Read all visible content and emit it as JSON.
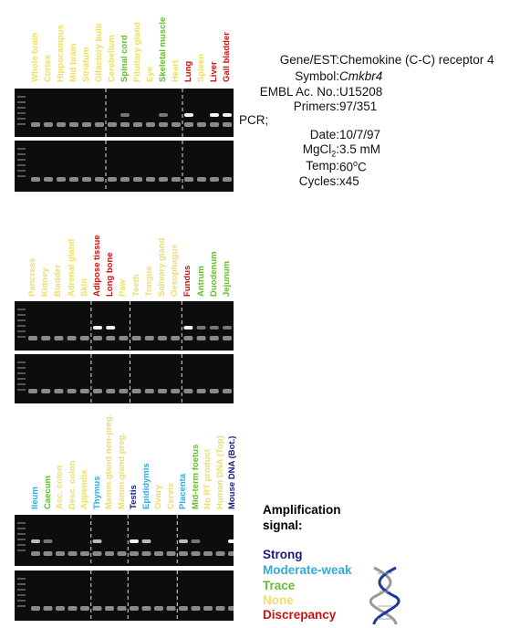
{
  "colors": {
    "strong": "#1a1a80",
    "moderate": "#33aadd",
    "trace": "#66bb33",
    "none": "#eedd66",
    "discrepancy": "#cc1111"
  },
  "panels": [
    {
      "lanes": [
        {
          "name": "Whole brain",
          "level": "none"
        },
        {
          "name": "Cortex",
          "level": "none"
        },
        {
          "name": "Hippocampus",
          "level": "none"
        },
        {
          "name": "Mid brain",
          "level": "none"
        },
        {
          "name": "Striatum",
          "level": "none"
        },
        {
          "name": "Olfactory bulb",
          "level": "none"
        },
        {
          "name": "Cerebellum",
          "level": "none"
        },
        {
          "name": "Spinal cord",
          "level": "trace"
        },
        {
          "name": "Pituitary gland",
          "level": "none"
        },
        {
          "name": "Eye",
          "level": "none"
        },
        {
          "name": "Skeletal muscle",
          "level": "trace"
        },
        {
          "name": "Heart",
          "level": "none"
        },
        {
          "name": "Lung",
          "level": "discrepancy"
        },
        {
          "name": "Spleen",
          "level": "none"
        },
        {
          "name": "Liver",
          "level": "discrepancy"
        },
        {
          "name": "Gall bladder",
          "level": "discrepancy"
        }
      ]
    },
    {
      "lanes": [
        {
          "name": "Pancreas",
          "level": "none"
        },
        {
          "name": "Kidney",
          "level": "none"
        },
        {
          "name": "Bladder",
          "level": "none"
        },
        {
          "name": "Adrenal gland",
          "level": "none"
        },
        {
          "name": "Skin",
          "level": "none"
        },
        {
          "name": "Adipose tissue",
          "level": "discrepancy"
        },
        {
          "name": "Long bone",
          "level": "discrepancy"
        },
        {
          "name": "Paw",
          "level": "none"
        },
        {
          "name": "Teeth",
          "level": "none"
        },
        {
          "name": "Tongue",
          "level": "none"
        },
        {
          "name": "Salivary gland",
          "level": "none"
        },
        {
          "name": "Oesophagus",
          "level": "none"
        },
        {
          "name": "Fundus",
          "level": "discrepancy"
        },
        {
          "name": "Antrum",
          "level": "trace"
        },
        {
          "name": "Duodenum",
          "level": "trace"
        },
        {
          "name": "Jejunum",
          "level": "trace"
        }
      ]
    },
    {
      "lanes": [
        {
          "name": "Ileum",
          "level": "moderate"
        },
        {
          "name": "Caecum",
          "level": "trace"
        },
        {
          "name": "Asc. colon",
          "level": "none"
        },
        {
          "name": "Desc. colon",
          "level": "none"
        },
        {
          "name": "Appendix",
          "level": "none"
        },
        {
          "name": "Thymus",
          "level": "moderate"
        },
        {
          "name": "Mamm.gland non-preg.",
          "level": "none"
        },
        {
          "name": "Mamm.gland preg.",
          "level": "none"
        },
        {
          "name": "Testis",
          "level": "strong"
        },
        {
          "name": "Epididymis",
          "level": "moderate"
        },
        {
          "name": "Ovary",
          "level": "none"
        },
        {
          "name": "Cervix",
          "level": "none"
        },
        {
          "name": "Placenta",
          "level": "moderate"
        },
        {
          "name": "Mid-term foetus",
          "level": "trace"
        },
        {
          "name": "No RT product",
          "level": "none"
        },
        {
          "name": "Human DNA (Top)",
          "level": "none"
        },
        {
          "name": "Mouse DNA (Bot.)",
          "level": "strong"
        }
      ]
    }
  ],
  "info": {
    "gene_label": "Gene/EST:",
    "gene_value": "Chemokine (C-C) receptor 4",
    "symbol_label": "Symbol:",
    "symbol_value": "Cmkbr4",
    "embl_label": "EMBL Ac. No.:",
    "embl_value": "U15208",
    "primers_label": "Primers:",
    "primers_value": "97/351",
    "pcr_label": "PCR;",
    "date_label": "Date:",
    "date_value": "10/7/97",
    "mgcl_label_main": "MgCl",
    "mgcl_label_sub": "2",
    "mgcl_label_colon": ":",
    "mgcl_value": "3.5 mM",
    "temp_label": "Temp:",
    "temp_value_num": "60",
    "temp_value_sup": "o",
    "temp_value_unit": "C",
    "cycles_label": "Cycles:",
    "cycles_value": "x45"
  },
  "legend": {
    "title_line1": "Amplification",
    "title_line2": "signal:",
    "strong": "Strong",
    "moderate": "Moderate-weak",
    "trace": "Trace",
    "none": "None",
    "discrepancy": "Discrepancy"
  }
}
